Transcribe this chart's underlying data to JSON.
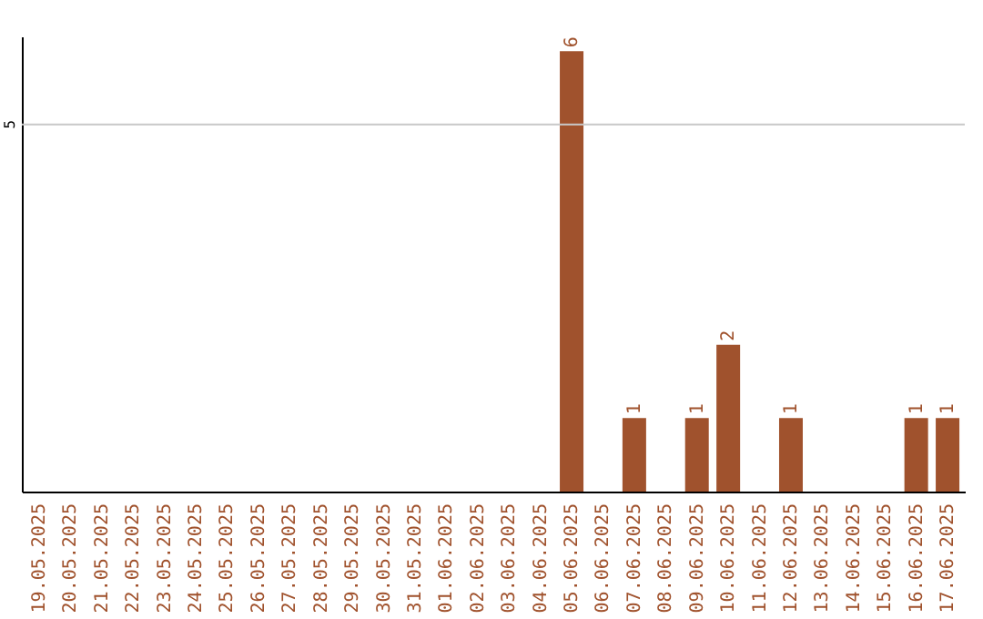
{
  "chart_data": {
    "type": "bar",
    "categories": [
      "19.05.2025",
      "20.05.2025",
      "21.05.2025",
      "22.05.2025",
      "23.05.2025",
      "24.05.2025",
      "25.05.2025",
      "26.05.2025",
      "27.05.2025",
      "28.05.2025",
      "29.05.2025",
      "30.05.2025",
      "31.05.2025",
      "01.06.2025",
      "02.06.2025",
      "03.06.2025",
      "04.06.2025",
      "05.06.2025",
      "06.06.2025",
      "07.06.2025",
      "08.06.2025",
      "09.06.2025",
      "10.06.2025",
      "11.06.2025",
      "12.06.2025",
      "13.06.2025",
      "14.06.2025",
      "15.06.2025",
      "16.06.2025",
      "17.06.2025"
    ],
    "values": [
      null,
      null,
      null,
      null,
      null,
      null,
      null,
      null,
      null,
      null,
      null,
      null,
      null,
      null,
      null,
      null,
      null,
      6,
      null,
      1,
      null,
      1,
      2,
      null,
      1,
      null,
      null,
      null,
      1,
      1
    ],
    "ylim": [
      0,
      6.2
    ],
    "ref_lines": [
      {
        "axis": "y",
        "value": 5,
        "label": "5",
        "color": "#c8c8c8"
      }
    ],
    "value_labels": [
      null,
      null,
      null,
      null,
      null,
      null,
      null,
      null,
      null,
      null,
      null,
      null,
      null,
      null,
      null,
      null,
      null,
      "6",
      null,
      "1",
      null,
      "1",
      "2",
      null,
      "1",
      null,
      null,
      null,
      "1",
      "1"
    ],
    "color": "#a0522d"
  }
}
